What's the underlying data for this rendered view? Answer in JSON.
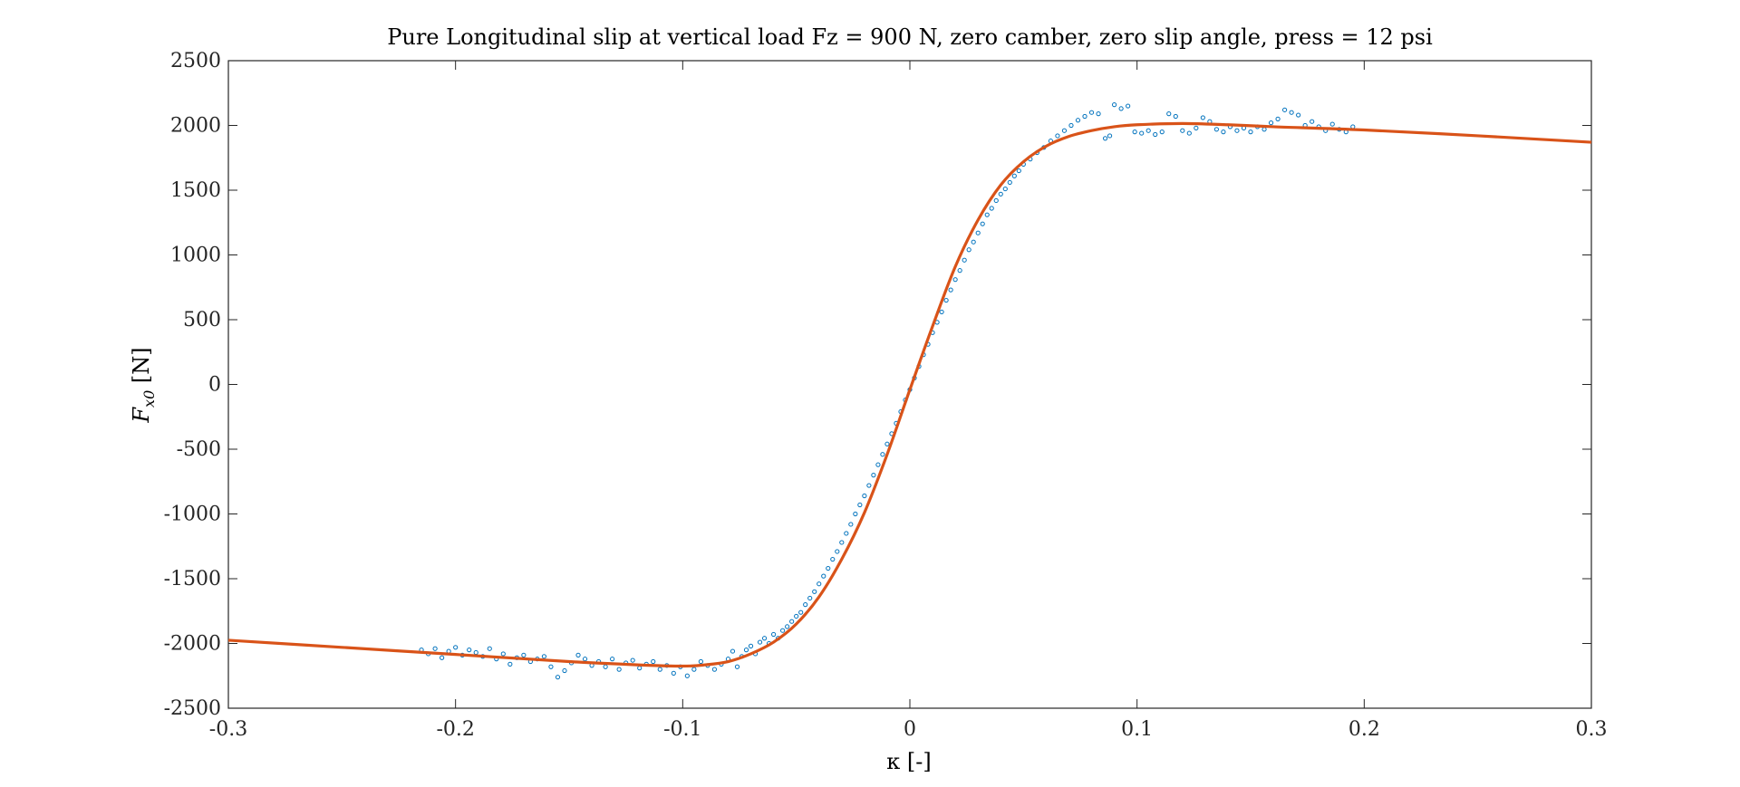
{
  "chart_data": {
    "type": "scatter",
    "title": "Pure Longitudinal slip at vertical load Fz = 900 N, zero camber, zero slip angle, press = 12 psi",
    "xlabel": "κ [-]",
    "ylabel": "F_x0 [N]",
    "xlim": [
      -0.3,
      0.3
    ],
    "ylim": [
      -2500,
      2500
    ],
    "xticks": [
      "-0.3",
      "-0.2",
      "-0.1",
      "0",
      "0.1",
      "0.2",
      "0.3"
    ],
    "yticks": [
      "2500",
      "2000",
      "1500",
      "1000",
      "500",
      "0",
      "-500",
      "-1000",
      "-1500",
      "-2000",
      "-2500"
    ],
    "grid": false,
    "legend": "none",
    "series": [
      {
        "kind": "markers",
        "color": "#0072BD",
        "marker": "circle",
        "points": [
          [
            -0.215,
            -2050
          ],
          [
            -0.212,
            -2080
          ],
          [
            -0.209,
            -2040
          ],
          [
            -0.206,
            -2110
          ],
          [
            -0.203,
            -2060
          ],
          [
            -0.2,
            -2030
          ],
          [
            -0.197,
            -2090
          ],
          [
            -0.194,
            -2050
          ],
          [
            -0.191,
            -2070
          ],
          [
            -0.188,
            -2100
          ],
          [
            -0.185,
            -2040
          ],
          [
            -0.182,
            -2120
          ],
          [
            -0.179,
            -2080
          ],
          [
            -0.176,
            -2160
          ],
          [
            -0.173,
            -2110
          ],
          [
            -0.17,
            -2090
          ],
          [
            -0.167,
            -2140
          ],
          [
            -0.164,
            -2120
          ],
          [
            -0.161,
            -2100
          ],
          [
            -0.158,
            -2180
          ],
          [
            -0.155,
            -2260
          ],
          [
            -0.152,
            -2210
          ],
          [
            -0.149,
            -2150
          ],
          [
            -0.146,
            -2090
          ],
          [
            -0.143,
            -2120
          ],
          [
            -0.14,
            -2170
          ],
          [
            -0.137,
            -2140
          ],
          [
            -0.134,
            -2180
          ],
          [
            -0.131,
            -2120
          ],
          [
            -0.128,
            -2200
          ],
          [
            -0.125,
            -2150
          ],
          [
            -0.122,
            -2130
          ],
          [
            -0.119,
            -2190
          ],
          [
            -0.116,
            -2160
          ],
          [
            -0.113,
            -2140
          ],
          [
            -0.11,
            -2200
          ],
          [
            -0.107,
            -2170
          ],
          [
            -0.104,
            -2230
          ],
          [
            -0.101,
            -2180
          ],
          [
            -0.098,
            -2250
          ],
          [
            -0.095,
            -2200
          ],
          [
            -0.092,
            -2140
          ],
          [
            -0.089,
            -2170
          ],
          [
            -0.086,
            -2200
          ],
          [
            -0.083,
            -2160
          ],
          [
            -0.08,
            -2120
          ],
          [
            -0.078,
            -2060
          ],
          [
            -0.076,
            -2180
          ],
          [
            -0.074,
            -2100
          ],
          [
            -0.072,
            -2050
          ],
          [
            -0.07,
            -2020
          ],
          [
            -0.068,
            -2080
          ],
          [
            -0.066,
            -1990
          ],
          [
            -0.064,
            -1960
          ],
          [
            -0.062,
            -2000
          ],
          [
            -0.06,
            -1930
          ],
          [
            -0.058,
            -1960
          ],
          [
            -0.056,
            -1900
          ],
          [
            -0.054,
            -1870
          ],
          [
            -0.052,
            -1830
          ],
          [
            -0.05,
            -1790
          ],
          [
            -0.048,
            -1760
          ],
          [
            -0.046,
            -1700
          ],
          [
            -0.044,
            -1650
          ],
          [
            -0.042,
            -1600
          ],
          [
            -0.04,
            -1540
          ],
          [
            -0.038,
            -1480
          ],
          [
            -0.036,
            -1420
          ],
          [
            -0.034,
            -1350
          ],
          [
            -0.032,
            -1290
          ],
          [
            -0.03,
            -1220
          ],
          [
            -0.028,
            -1150
          ],
          [
            -0.026,
            -1080
          ],
          [
            -0.024,
            -1000
          ],
          [
            -0.022,
            -930
          ],
          [
            -0.02,
            -860
          ],
          [
            -0.018,
            -780
          ],
          [
            -0.016,
            -700
          ],
          [
            -0.014,
            -620
          ],
          [
            -0.012,
            -540
          ],
          [
            -0.01,
            -460
          ],
          [
            -0.008,
            -380
          ],
          [
            -0.006,
            -300
          ],
          [
            -0.004,
            -210
          ],
          [
            -0.002,
            -120
          ],
          [
            0.0,
            -40
          ],
          [
            0.002,
            50
          ],
          [
            0.004,
            140
          ],
          [
            0.006,
            230
          ],
          [
            0.008,
            310
          ],
          [
            0.01,
            400
          ],
          [
            0.012,
            480
          ],
          [
            0.014,
            560
          ],
          [
            0.016,
            650
          ],
          [
            0.018,
            730
          ],
          [
            0.02,
            810
          ],
          [
            0.022,
            880
          ],
          [
            0.024,
            960
          ],
          [
            0.026,
            1040
          ],
          [
            0.028,
            1100
          ],
          [
            0.03,
            1170
          ],
          [
            0.032,
            1240
          ],
          [
            0.034,
            1310
          ],
          [
            0.036,
            1360
          ],
          [
            0.038,
            1420
          ],
          [
            0.04,
            1470
          ],
          [
            0.042,
            1510
          ],
          [
            0.044,
            1560
          ],
          [
            0.046,
            1610
          ],
          [
            0.048,
            1650
          ],
          [
            0.05,
            1700
          ],
          [
            0.053,
            1740
          ],
          [
            0.056,
            1790
          ],
          [
            0.059,
            1830
          ],
          [
            0.062,
            1880
          ],
          [
            0.065,
            1920
          ],
          [
            0.068,
            1960
          ],
          [
            0.071,
            2000
          ],
          [
            0.074,
            2040
          ],
          [
            0.077,
            2070
          ],
          [
            0.08,
            2100
          ],
          [
            0.083,
            2090
          ],
          [
            0.086,
            1900
          ],
          [
            0.088,
            1920
          ],
          [
            0.09,
            2160
          ],
          [
            0.093,
            2130
          ],
          [
            0.096,
            2150
          ],
          [
            0.099,
            1950
          ],
          [
            0.102,
            1940
          ],
          [
            0.105,
            1960
          ],
          [
            0.108,
            1930
          ],
          [
            0.111,
            1950
          ],
          [
            0.114,
            2090
          ],
          [
            0.117,
            2070
          ],
          [
            0.12,
            1960
          ],
          [
            0.123,
            1940
          ],
          [
            0.126,
            1980
          ],
          [
            0.129,
            2060
          ],
          [
            0.132,
            2030
          ],
          [
            0.135,
            1970
          ],
          [
            0.138,
            1950
          ],
          [
            0.141,
            1990
          ],
          [
            0.144,
            1960
          ],
          [
            0.147,
            1980
          ],
          [
            0.15,
            1950
          ],
          [
            0.153,
            1990
          ],
          [
            0.156,
            1970
          ],
          [
            0.159,
            2020
          ],
          [
            0.162,
            2050
          ],
          [
            0.165,
            2120
          ],
          [
            0.168,
            2100
          ],
          [
            0.171,
            2080
          ],
          [
            0.174,
            2000
          ],
          [
            0.177,
            2030
          ],
          [
            0.18,
            1990
          ],
          [
            0.183,
            1960
          ],
          [
            0.186,
            2010
          ],
          [
            0.189,
            1970
          ],
          [
            0.192,
            1950
          ],
          [
            0.195,
            1990
          ]
        ]
      },
      {
        "kind": "line",
        "color": "#D95319",
        "points": [
          [
            -0.3,
            -1975
          ],
          [
            -0.25,
            -2030
          ],
          [
            -0.2,
            -2085
          ],
          [
            -0.15,
            -2140
          ],
          [
            -0.12,
            -2165
          ],
          [
            -0.1,
            -2175
          ],
          [
            -0.09,
            -2165
          ],
          [
            -0.08,
            -2140
          ],
          [
            -0.07,
            -2080
          ],
          [
            -0.06,
            -1990
          ],
          [
            -0.05,
            -1850
          ],
          [
            -0.04,
            -1640
          ],
          [
            -0.03,
            -1350
          ],
          [
            -0.02,
            -990
          ],
          [
            -0.01,
            -540
          ],
          [
            0.0,
            -40
          ],
          [
            0.01,
            450
          ],
          [
            0.02,
            910
          ],
          [
            0.03,
            1270
          ],
          [
            0.04,
            1540
          ],
          [
            0.05,
            1720
          ],
          [
            0.06,
            1840
          ],
          [
            0.07,
            1915
          ],
          [
            0.08,
            1960
          ],
          [
            0.09,
            1990
          ],
          [
            0.1,
            2005
          ],
          [
            0.12,
            2015
          ],
          [
            0.14,
            2005
          ],
          [
            0.16,
            1990
          ],
          [
            0.2,
            1965
          ],
          [
            0.25,
            1920
          ],
          [
            0.3,
            1870
          ]
        ]
      }
    ]
  }
}
